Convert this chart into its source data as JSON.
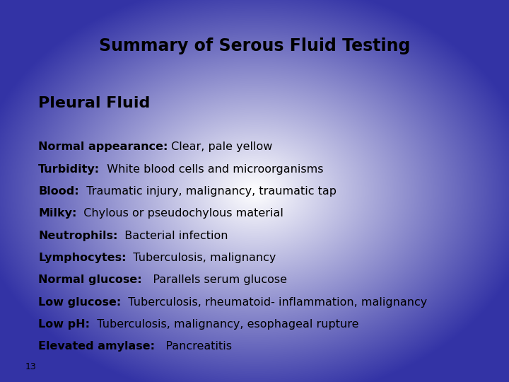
{
  "title": "Summary of Serous Fluid Testing",
  "subtitle": "Pleural Fluid",
  "slide_number": "13",
  "lines": [
    {
      "bold": "Normal appearance:",
      "normal": " Clear, pale yellow"
    },
    {
      "bold": "Turbidity:",
      "normal": "  White blood cells and microorganisms"
    },
    {
      "bold": "Blood:",
      "normal": "  Traumatic injury, malignancy, traumatic tap"
    },
    {
      "bold": "Milky:",
      "normal": "  Chylous or pseudochylous material"
    },
    {
      "bold": "Neutrophils:",
      "normal": "  Bacterial infection"
    },
    {
      "bold": "Lymphocytes:",
      "normal": "  Tuberculosis, malignancy"
    },
    {
      "bold": "Normal glucose:",
      "normal": "   Parallels serum glucose"
    },
    {
      "bold": "Low glucose:",
      "normal": "  Tuberculosis, rheumatoid- inflammation, malignancy"
    },
    {
      "bold": "Low pH:",
      "normal": "  Tuberculosis, malignancy, esophageal rupture"
    },
    {
      "bold": "Elevated amylase:",
      "normal": "   Pancreatitis"
    }
  ],
  "bg_blue": [
    0.2,
    0.2,
    0.65
  ],
  "bg_white": [
    1.0,
    1.0,
    1.0
  ],
  "text_color": "#000000",
  "title_fontsize": 17,
  "subtitle_fontsize": 16,
  "body_fontsize": 11.5,
  "slide_num_fontsize": 9
}
